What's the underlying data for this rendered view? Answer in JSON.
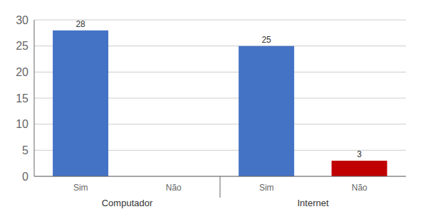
{
  "chart_data": {
    "type": "bar",
    "categories": [
      "Sim",
      "Não",
      "Sim",
      "Não"
    ],
    "values": [
      28,
      0,
      25,
      3
    ],
    "value_labels": [
      "28",
      null,
      "25",
      "3"
    ],
    "colors": [
      "#4472C4",
      "#4472C4",
      "#4472C4",
      "#C00000"
    ],
    "group_labels": [
      "Computador",
      "Internet"
    ],
    "ylim": [
      0,
      30
    ],
    "yticks": [
      0,
      5,
      10,
      15,
      20,
      25,
      30
    ],
    "grid": true
  }
}
